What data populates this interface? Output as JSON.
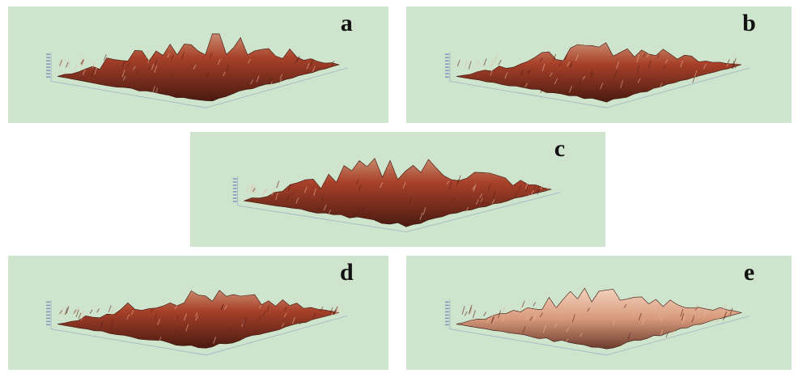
{
  "panels": [
    {
      "label": "a"
    },
    {
      "label": "b"
    },
    {
      "label": "c"
    },
    {
      "label": "d"
    },
    {
      "label": "e"
    }
  ]
}
